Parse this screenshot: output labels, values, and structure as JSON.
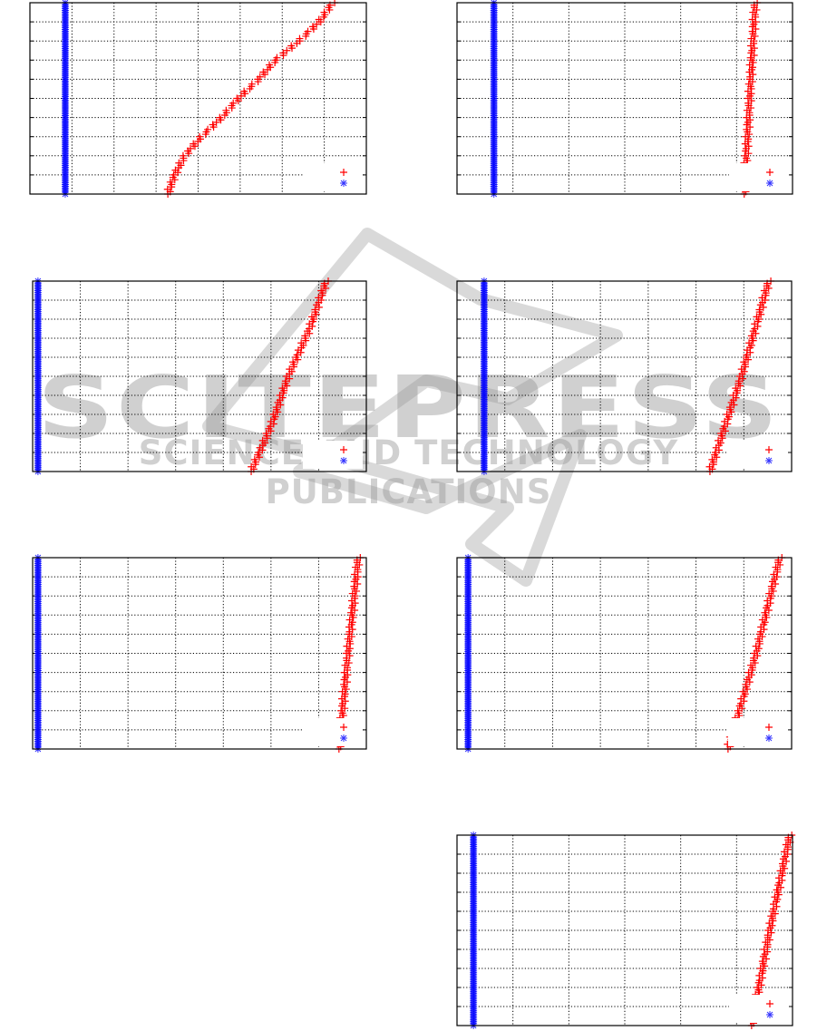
{
  "watermark": {
    "title": "SCITEPRESS",
    "subtitle": "SCIENCE AND TECHNOLOGY PUBLICATIONS"
  },
  "colors": {
    "series_a": "#ff0000",
    "series_b": "#0000ff",
    "grid": "#000000",
    "watermark": "#c8c8c8"
  },
  "chart_data": [
    {
      "type": "scatter",
      "grid": true,
      "legend": "bottom-right",
      "x_divisions": 8,
      "y_divisions": 10,
      "xlim": [
        0,
        1
      ],
      "ylim": [
        0,
        1
      ],
      "series": [
        {
          "marker": "plus",
          "color": "#ff0000",
          "y": [
            0,
            0.1,
            0.2,
            0.3,
            0.4,
            0.5,
            0.6,
            0.7,
            0.8,
            0.9,
            1
          ],
          "x": [
            0.41,
            0.43,
            0.46,
            0.51,
            0.57,
            0.62,
            0.68,
            0.73,
            0.8,
            0.86,
            0.9
          ]
        },
        {
          "marker": "asterisk",
          "color": "#0000ff",
          "y": [
            0,
            1
          ],
          "x": [
            0.105,
            0.105
          ]
        }
      ]
    },
    {
      "type": "scatter",
      "grid": true,
      "legend": "bottom-right",
      "x_divisions": 6,
      "y_divisions": 10,
      "xlim": [
        0,
        1
      ],
      "ylim": [
        0,
        1
      ],
      "series": [
        {
          "marker": "plus",
          "color": "#ff0000",
          "y": [
            0,
            0.5,
            1
          ],
          "x": [
            0.856,
            0.872,
            0.889
          ]
        },
        {
          "marker": "asterisk",
          "color": "#0000ff",
          "y": [
            0,
            1
          ],
          "x": [
            0.11,
            0.11
          ]
        }
      ]
    },
    {
      "type": "scatter",
      "grid": true,
      "legend": "bottom-right",
      "x_divisions": 7,
      "y_divisions": 10,
      "xlim": [
        0,
        1
      ],
      "ylim": [
        0,
        1
      ],
      "series": [
        {
          "marker": "plus",
          "color": "#ff0000",
          "y": [
            0,
            0.25,
            0.5,
            0.75,
            1
          ],
          "x": [
            0.655,
            0.717,
            0.766,
            0.83,
            0.88
          ]
        },
        {
          "marker": "asterisk",
          "color": "#0000ff",
          "y": [
            0,
            1
          ],
          "x": [
            0.016,
            0.016
          ]
        }
      ]
    },
    {
      "type": "scatter",
      "grid": true,
      "legend": "bottom-right",
      "x_divisions": 7,
      "y_divisions": 10,
      "xlim": [
        0,
        1
      ],
      "ylim": [
        0,
        1
      ],
      "series": [
        {
          "marker": "plus",
          "color": "#ff0000",
          "y": [
            0,
            0.5,
            1
          ],
          "x": [
            0.756,
            0.85,
            0.932
          ]
        },
        {
          "marker": "asterisk",
          "color": "#0000ff",
          "y": [
            0,
            1
          ],
          "x": [
            0.081,
            0.081
          ]
        }
      ]
    },
    {
      "type": "scatter",
      "grid": true,
      "legend": "bottom-right",
      "x_divisions": 7,
      "y_divisions": 10,
      "xlim": [
        0,
        1
      ],
      "ylim": [
        0,
        1
      ],
      "series": [
        {
          "marker": "plus",
          "color": "#ff0000",
          "y": [
            0,
            0.5,
            1
          ],
          "x": [
            0.918,
            0.945,
            0.976
          ]
        },
        {
          "marker": "asterisk",
          "color": "#0000ff",
          "y": [
            0,
            1
          ],
          "x": [
            0.016,
            0.016
          ]
        }
      ]
    },
    {
      "type": "scatter",
      "grid": true,
      "legend": "bottom-right",
      "x_divisions": 7,
      "y_divisions": 10,
      "xlim": [
        0,
        1
      ],
      "ylim": [
        0,
        1
      ],
      "series": [
        {
          "marker": "plus",
          "color": "#ff0000",
          "y": [
            0,
            0.5,
            1
          ],
          "x": [
            0.81,
            0.894,
            0.965
          ]
        },
        {
          "marker": "asterisk",
          "color": "#0000ff",
          "y": [
            0,
            1
          ],
          "x": [
            0.033,
            0.033
          ]
        }
      ]
    },
    {
      "type": "scatter",
      "grid": true,
      "legend": "bottom-right",
      "x_divisions": 6,
      "y_divisions": 10,
      "xlim": [
        0,
        1
      ],
      "ylim": [
        0,
        1
      ],
      "series": [
        {
          "marker": "plus",
          "color": "#ff0000",
          "y": [
            0,
            0.5,
            1
          ],
          "x": [
            0.878,
            0.932,
            0.992
          ]
        },
        {
          "marker": "asterisk",
          "color": "#0000ff",
          "y": [
            0,
            1
          ],
          "x": [
            0.049,
            0.049
          ]
        }
      ]
    }
  ]
}
